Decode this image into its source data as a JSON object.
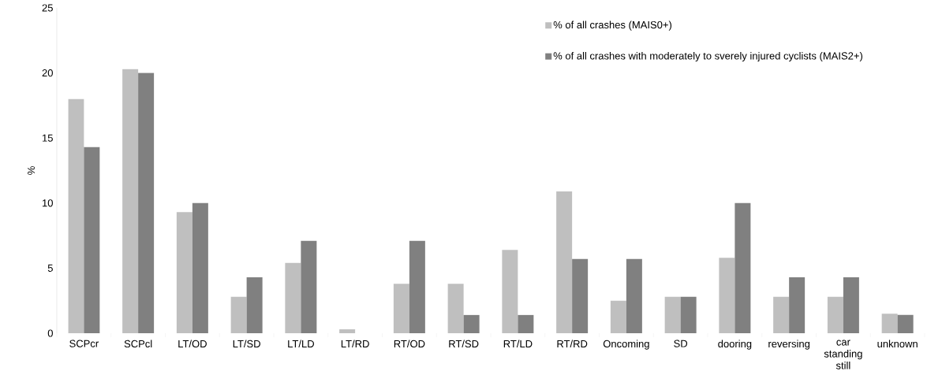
{
  "chart_data": {
    "type": "bar",
    "ylabel": "%",
    "categories": [
      "SCPcr",
      "SCPcl",
      "LT/OD",
      "LT/SD",
      "LT/LD",
      "LT/RD",
      "RT/OD",
      "RT/SD",
      "RT/LD",
      "RT/RD",
      "Oncoming",
      "SD",
      "dooring",
      "reversing",
      "car standing still",
      "unknown"
    ],
    "series": [
      {
        "name": "% of all crashes (MAIS0+)",
        "color": "#bfbfbf",
        "values": [
          18.0,
          20.3,
          9.3,
          2.8,
          5.4,
          0.3,
          3.8,
          3.8,
          6.4,
          10.9,
          2.5,
          2.8,
          5.8,
          2.8,
          2.8,
          1.5
        ]
      },
      {
        "name": "% of all crashes with moderately to sverely injured cyclists (MAIS2+)",
        "color": "#808080",
        "values": [
          14.3,
          20.0,
          10.0,
          4.3,
          7.1,
          0,
          7.1,
          1.4,
          1.4,
          5.7,
          5.7,
          2.8,
          10.0,
          4.3,
          4.3,
          1.4
        ]
      }
    ],
    "ylim": [
      0,
      25
    ],
    "yticks": [
      0,
      5,
      10,
      15,
      20,
      25
    ],
    "grid": false,
    "legend": "top right"
  }
}
